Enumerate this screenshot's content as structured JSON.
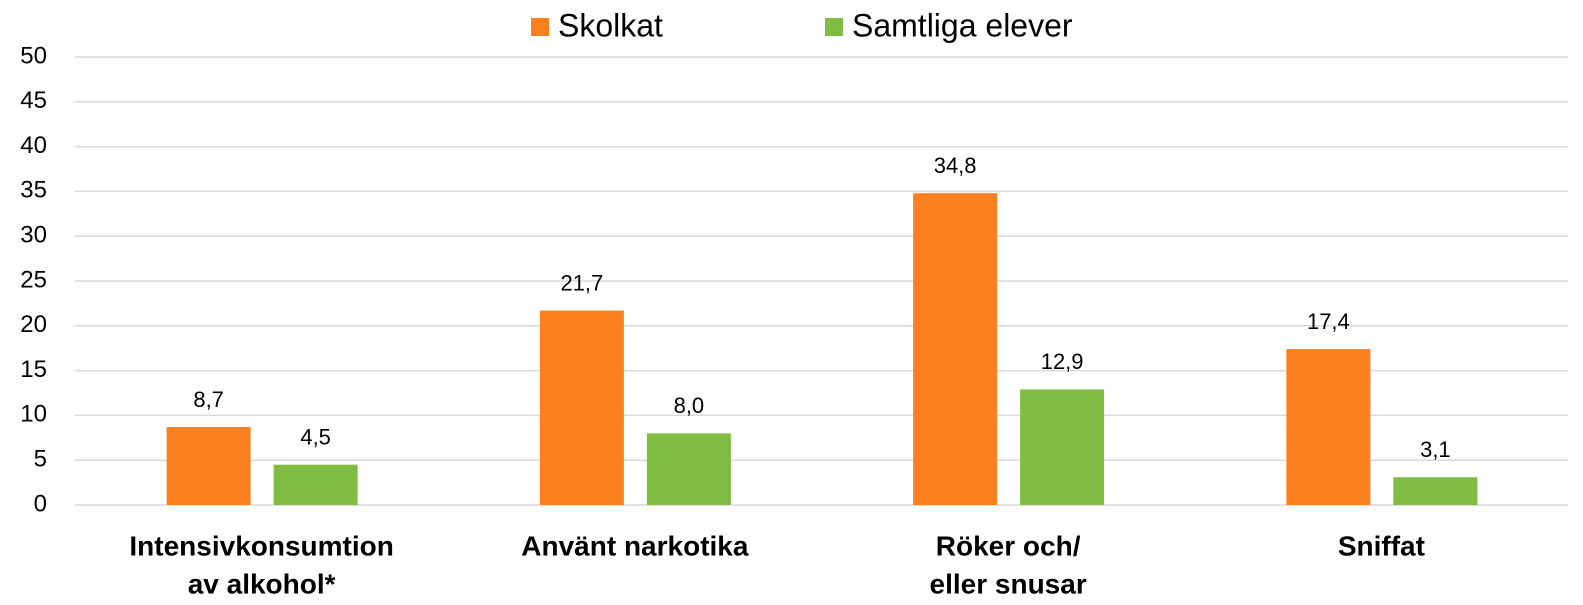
{
  "chart_data": {
    "type": "bar",
    "categories": [
      [
        "Intensivkonsumtion",
        "av alkohol*"
      ],
      [
        "Använt narkotika"
      ],
      [
        "Röker och/",
        "eller snusar"
      ],
      [
        "Sniffat"
      ]
    ],
    "series": [
      {
        "name": "Skolkat",
        "color": "#fd8020",
        "values": [
          8.7,
          21.7,
          34.8,
          17.4
        ],
        "value_labels": [
          "8,7",
          "21,7",
          "34,8",
          "17,4"
        ]
      },
      {
        "name": "Samtliga elever",
        "color": "#80bc42",
        "values": [
          4.5,
          8.0,
          12.9,
          3.1
        ],
        "value_labels": [
          "4,5",
          "8,0",
          "12,9",
          "3,1"
        ]
      }
    ],
    "ylim": [
      0,
      50
    ],
    "yticks": [
      0,
      5,
      10,
      15,
      20,
      25,
      30,
      35,
      40,
      45,
      50
    ],
    "grid": true,
    "legend": "top"
  }
}
